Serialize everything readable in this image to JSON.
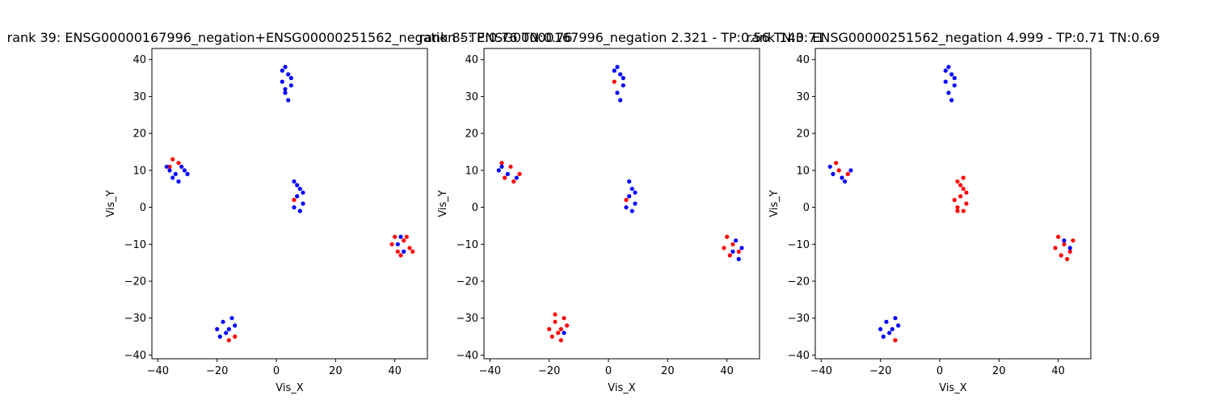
{
  "figure": {
    "colors": {
      "positive": "#ff0000",
      "negative": "#0000ff",
      "axis": "#000000"
    }
  },
  "chart_data": [
    {
      "type": "scatter",
      "title": "rank 39: ENSG00000167996_negation+ENSG00000251562_negation - TP:0.76 TN:0.76",
      "xlabel": "Vis_X",
      "ylabel": "Vis_Y",
      "xlim": [
        -42,
        51
      ],
      "ylim": [
        -41,
        43
      ],
      "xticks": [
        -40,
        -20,
        0,
        20,
        40
      ],
      "yticks": [
        -40,
        -30,
        -20,
        -10,
        0,
        10,
        20,
        30,
        40
      ],
      "series": [
        {
          "color": "red",
          "points": [
            [
              -35,
              13
            ],
            [
              -33,
              12
            ],
            [
              -36,
              11
            ],
            [
              6,
              2
            ],
            [
              40,
              -8
            ],
            [
              43,
              -9
            ],
            [
              41,
              -12
            ],
            [
              45,
              -11
            ],
            [
              42,
              -13
            ],
            [
              44,
              -8
            ],
            [
              39,
              -10
            ],
            [
              46,
              -12
            ],
            [
              -16,
              -36
            ],
            [
              -14,
              -35
            ]
          ]
        },
        {
          "color": "blue",
          "points": [
            [
              3,
              38
            ],
            [
              4,
              36
            ],
            [
              2,
              34
            ],
            [
              5,
              33
            ],
            [
              3,
              31
            ],
            [
              4,
              29
            ],
            [
              2,
              37
            ],
            [
              5,
              35
            ],
            [
              3,
              32
            ],
            [
              -37,
              11
            ],
            [
              -34,
              9
            ],
            [
              -31,
              10
            ],
            [
              -35,
              8
            ],
            [
              -33,
              7
            ],
            [
              -30,
              9
            ],
            [
              -36,
              10
            ],
            [
              -32,
              11
            ],
            [
              6,
              7
            ],
            [
              8,
              5
            ],
            [
              7,
              3
            ],
            [
              9,
              1
            ],
            [
              6,
              0
            ],
            [
              8,
              -1
            ],
            [
              7,
              6
            ],
            [
              9,
              4
            ],
            [
              41,
              -10
            ],
            [
              43,
              -12
            ],
            [
              42,
              -8
            ],
            [
              -18,
              -31
            ],
            [
              -16,
              -33
            ],
            [
              -19,
              -35
            ],
            [
              -15,
              -30
            ],
            [
              -17,
              -34
            ],
            [
              -14,
              -32
            ],
            [
              -20,
              -33
            ]
          ]
        }
      ]
    },
    {
      "type": "scatter",
      "title": "rank 85: ENSG00000167996_negation 2.321 - TP:0.56 TN:0.71",
      "xlabel": "Vis_X",
      "ylabel": "Vis_Y",
      "xlim": [
        -42,
        51
      ],
      "ylim": [
        -41,
        43
      ],
      "xticks": [
        -40,
        -20,
        0,
        20,
        40
      ],
      "yticks": [
        -40,
        -30,
        -20,
        -10,
        0,
        10,
        20,
        30,
        40
      ],
      "series": [
        {
          "color": "red",
          "points": [
            [
              -36,
              12
            ],
            [
              -33,
              11
            ],
            [
              -30,
              9
            ],
            [
              -35,
              8
            ],
            [
              -32,
              7
            ],
            [
              2,
              34
            ],
            [
              40,
              -8
            ],
            [
              42,
              -10
            ],
            [
              39,
              -11
            ],
            [
              44,
              -12
            ],
            [
              41,
              -13
            ],
            [
              -18,
              -31
            ],
            [
              -16,
              -33
            ],
            [
              -19,
              -35
            ],
            [
              -15,
              -30
            ],
            [
              -17,
              -34
            ],
            [
              -14,
              -32
            ],
            [
              -20,
              -33
            ],
            [
              -16,
              -36
            ],
            [
              -18,
              -29
            ],
            [
              6,
              2
            ]
          ]
        },
        {
          "color": "blue",
          "points": [
            [
              3,
              38
            ],
            [
              4,
              36
            ],
            [
              2,
              37
            ],
            [
              5,
              35
            ],
            [
              3,
              31
            ],
            [
              4,
              29
            ],
            [
              5,
              33
            ],
            [
              -37,
              10
            ],
            [
              -34,
              9
            ],
            [
              -31,
              8
            ],
            [
              -36,
              11
            ],
            [
              7,
              7
            ],
            [
              8,
              5
            ],
            [
              7,
              3
            ],
            [
              9,
              1
            ],
            [
              6,
              0
            ],
            [
              8,
              -1
            ],
            [
              9,
              4
            ],
            [
              43,
              -9
            ],
            [
              45,
              -11
            ],
            [
              42,
              -12
            ],
            [
              44,
              -14
            ],
            [
              -15,
              -34
            ]
          ]
        }
      ]
    },
    {
      "type": "scatter",
      "title": "rank 143: ENSG00000251562_negation 4.999 - TP:0.71 TN:0.69",
      "xlabel": "Vis_X",
      "ylabel": "Vis_Y",
      "xlim": [
        -42,
        51
      ],
      "ylim": [
        -41,
        43
      ],
      "xticks": [
        -40,
        -20,
        0,
        20,
        40
      ],
      "yticks": [
        -40,
        -30,
        -20,
        -10,
        0,
        10,
        20,
        30,
        40
      ],
      "series": [
        {
          "color": "red",
          "points": [
            [
              -35,
              12
            ],
            [
              -31,
              9
            ],
            [
              -34,
              10
            ],
            [
              6,
              7
            ],
            [
              8,
              5
            ],
            [
              7,
              3
            ],
            [
              9,
              1
            ],
            [
              6,
              0
            ],
            [
              8,
              -1
            ],
            [
              7,
              6
            ],
            [
              9,
              4
            ],
            [
              5,
              2
            ],
            [
              8,
              8
            ],
            [
              6,
              -1
            ],
            [
              40,
              -8
            ],
            [
              42,
              -10
            ],
            [
              39,
              -11
            ],
            [
              44,
              -12
            ],
            [
              41,
              -13
            ],
            [
              45,
              -9
            ],
            [
              43,
              -14
            ],
            [
              -15,
              -36
            ]
          ]
        },
        {
          "color": "blue",
          "points": [
            [
              3,
              38
            ],
            [
              4,
              36
            ],
            [
              2,
              34
            ],
            [
              5,
              33
            ],
            [
              3,
              31
            ],
            [
              4,
              29
            ],
            [
              2,
              37
            ],
            [
              5,
              35
            ],
            [
              -37,
              11
            ],
            [
              -33,
              8
            ],
            [
              -30,
              10
            ],
            [
              -36,
              9
            ],
            [
              -32,
              7
            ],
            [
              42,
              -9
            ],
            [
              44,
              -11
            ],
            [
              -18,
              -31
            ],
            [
              -16,
              -33
            ],
            [
              -19,
              -35
            ],
            [
              -15,
              -30
            ],
            [
              -17,
              -34
            ],
            [
              -14,
              -32
            ],
            [
              -20,
              -33
            ]
          ]
        }
      ]
    }
  ]
}
